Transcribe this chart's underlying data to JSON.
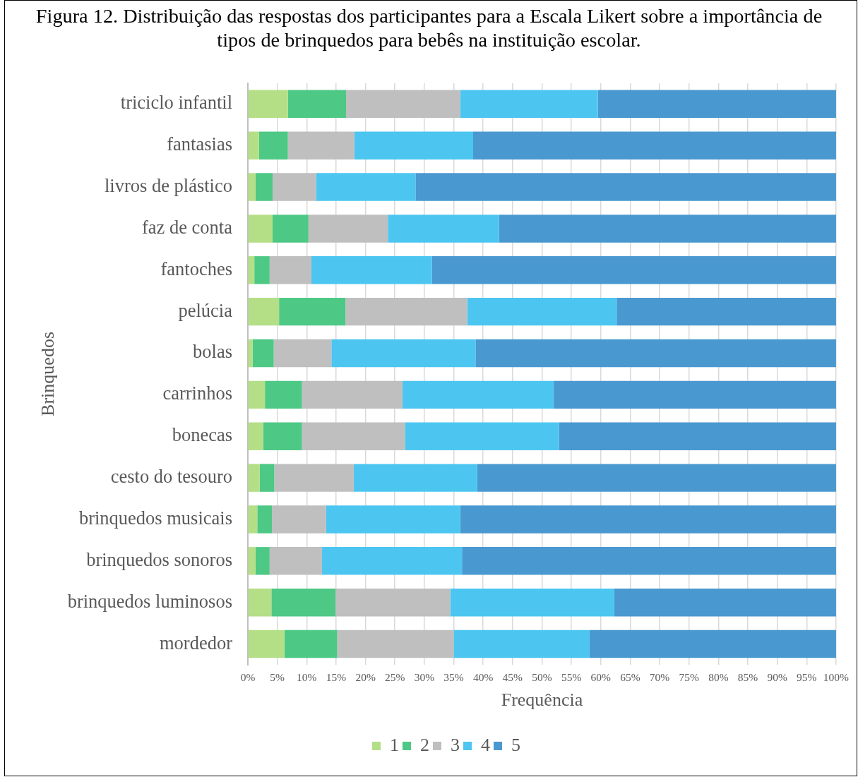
{
  "chart_data": {
    "type": "bar",
    "orientation": "horizontal",
    "stacked": true,
    "title": "Figura 12. Distribuição das respostas dos participantes para a Escala Likert sobre a importância de tipos de brinquedos para bebês na instituição escolar.",
    "xlabel": "Frequência",
    "ylabel": "Brinquedos",
    "categories": [
      "triciclo infantil",
      "fantasias",
      "livros de plástico",
      "faz de conta",
      "fantoches",
      "pelúcia",
      "bolas",
      "carrinhos",
      "bonecas",
      "cesto do tesouro",
      "brinquedos musicais",
      "brinquedos sonoros",
      "brinquedos luminosos",
      "mordedor"
    ],
    "series": [
      {
        "name": "1",
        "color": "#b4df86",
        "values": [
          6.8,
          1.9,
          1.3,
          4.2,
          1.1,
          5.3,
          0.8,
          2.9,
          2.6,
          2.0,
          1.6,
          1.3,
          4.0,
          6.2
        ]
      },
      {
        "name": "2",
        "color": "#4ec885",
        "values": [
          9.9,
          4.9,
          2.9,
          6.1,
          2.6,
          11.3,
          3.6,
          6.3,
          6.6,
          2.5,
          2.5,
          2.4,
          10.9,
          9.0
        ]
      },
      {
        "name": "3",
        "color": "#bfbfbf",
        "values": [
          19.4,
          11.3,
          7.4,
          13.5,
          7.1,
          20.7,
          9.8,
          17.1,
          17.5,
          13.5,
          9.2,
          8.9,
          19.5,
          19.8
        ]
      },
      {
        "name": "4",
        "color": "#4cc6f1",
        "values": [
          23.4,
          20.2,
          16.9,
          18.9,
          20.5,
          25.4,
          24.5,
          25.7,
          26.2,
          21.0,
          22.8,
          23.8,
          27.9,
          23.1
        ]
      },
      {
        "name": "5",
        "color": "#4a98d0",
        "values": [
          40.5,
          61.7,
          71.5,
          57.3,
          68.7,
          37.3,
          61.3,
          48.0,
          47.1,
          61.0,
          63.9,
          63.6,
          37.7,
          41.9
        ]
      }
    ],
    "xlim": [
      0,
      100
    ],
    "xticks": [
      {
        "value": 0,
        "label": "0%"
      },
      {
        "value": 5,
        "label": "5%"
      },
      {
        "value": 10,
        "label": "10%"
      },
      {
        "value": 15,
        "label": "15%"
      },
      {
        "value": 20,
        "label": "20%"
      },
      {
        "value": 25,
        "label": "25%"
      },
      {
        "value": 30,
        "label": "30%"
      },
      {
        "value": 35,
        "label": "35%"
      },
      {
        "value": 40,
        "label": "40%"
      },
      {
        "value": 45,
        "label": "45%"
      },
      {
        "value": 50,
        "label": "50%"
      },
      {
        "value": 55,
        "label": "55%"
      },
      {
        "value": 60,
        "label": "60%"
      },
      {
        "value": 65,
        "label": "65%"
      },
      {
        "value": 70,
        "label": "70%"
      },
      {
        "value": 75,
        "label": "75%"
      },
      {
        "value": 80,
        "label": "80%"
      },
      {
        "value": 85,
        "label": "85%"
      },
      {
        "value": 90,
        "label": "90%"
      },
      {
        "value": 95,
        "label": "95%"
      },
      {
        "value": 100,
        "label": "100%"
      }
    ],
    "grid": "x",
    "legend": "bottom"
  }
}
